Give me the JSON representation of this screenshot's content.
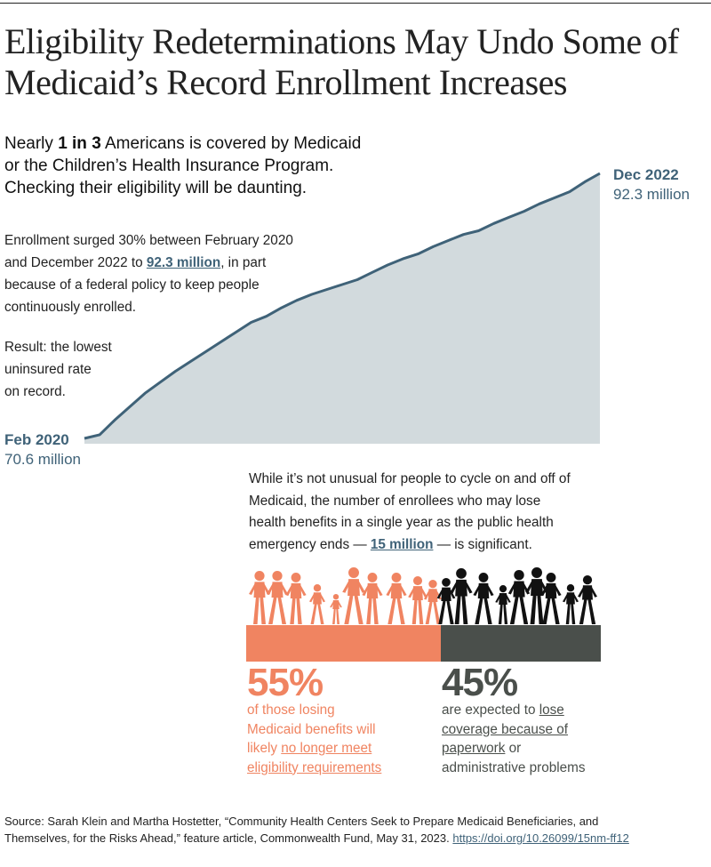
{
  "title": {
    "line1": "Eligibility Redeterminations May Undo Some of",
    "line2": "Medicaid’s Record Enrollment Increases"
  },
  "lede": {
    "l1_pre": "Nearly ",
    "l1_bold": "1 in 3",
    "l1_post": " Americans is covered by Medicaid",
    "l2": "or the Children’s Health Insurance Program.",
    "l3": "Checking their eligibility will be daunting."
  },
  "note1": {
    "l1": "Enrollment surged 30% between February 2020",
    "l2_pre": "and December 2022 to ",
    "l2_link": "92.3 million",
    "l2_post": ", in part",
    "l3": "because of a federal policy to keep people",
    "l4": "continuously enrolled."
  },
  "note2": {
    "l1": "Result: the lowest",
    "l2": "uninsured rate",
    "l3": "on record."
  },
  "chart_data": {
    "type": "area",
    "title": "",
    "xlabel": "",
    "ylabel": "",
    "start": {
      "date": "Feb 2020",
      "value": "70.6 million"
    },
    "end": {
      "date": "Dec 2022",
      "value": "92.3 million"
    },
    "x": [
      "2020-02",
      "2020-03",
      "2020-04",
      "2020-05",
      "2020-06",
      "2020-07",
      "2020-08",
      "2020-09",
      "2020-10",
      "2020-11",
      "2020-12",
      "2021-01",
      "2021-02",
      "2021-03",
      "2021-04",
      "2021-05",
      "2021-06",
      "2021-07",
      "2021-08",
      "2021-09",
      "2021-10",
      "2021-11",
      "2021-12",
      "2022-01",
      "2022-02",
      "2022-03",
      "2022-04",
      "2022-05",
      "2022-06",
      "2022-07",
      "2022-08",
      "2022-09",
      "2022-10",
      "2022-11",
      "2022-12"
    ],
    "series": [
      {
        "values": [
          70.6,
          70.9,
          72.1,
          73.2,
          74.3,
          75.2,
          76.1,
          76.9,
          77.7,
          78.5,
          79.3,
          80.1,
          80.6,
          81.3,
          81.9,
          82.4,
          82.8,
          83.2,
          83.6,
          84.2,
          84.8,
          85.3,
          85.7,
          86.3,
          86.8,
          87.3,
          87.6,
          88.2,
          88.7,
          89.2,
          89.8,
          90.3,
          90.8,
          91.6,
          92.3
        ]
      }
    ],
    "ylim": [
      70.6,
      92.3
    ],
    "colors": {
      "area": "#d2dadd",
      "line": "#3f6278"
    }
  },
  "mid_text": {
    "l1": "While it’s not unusual for people to cycle on and off of",
    "l2": "Medicaid, the number of enrollees who may lose",
    "l3": "health benefits in a single year as the public health",
    "l4_pre": "emergency ends — ",
    "l4_link": "15 million",
    "l4_post": " — is significant."
  },
  "breakdown": [
    {
      "percent": "55%",
      "value": 55,
      "color": "#f08461",
      "cap_l1": "of those losing",
      "cap_l2": "Medicaid benefits will",
      "cap_l3_pre": "likely ",
      "cap_l3_link": "no longer meet",
      "cap_l4_link": "eligibility requirements"
    },
    {
      "percent": "45%",
      "value": 45,
      "color": "#4a4f4b",
      "cap_l1_pre": "are expected to ",
      "cap_l1_link": "lose",
      "cap_l2_link": "coverage because of",
      "cap_l3_link": "paperwork",
      "cap_l3_post": " or",
      "cap_l4": "administrative problems"
    }
  ],
  "source": {
    "l1": "Source: Sarah Klein and Martha Hostetter, “Community Health Centers Seek to Prepare Medicaid Beneficiaries, and",
    "l2_pre": "Themselves, for the Risks Ahead,” feature article, Commonwealth Fund, May 31, 2023. ",
    "l2_link": "https://doi.org/10.26099/15nm-ff12"
  }
}
